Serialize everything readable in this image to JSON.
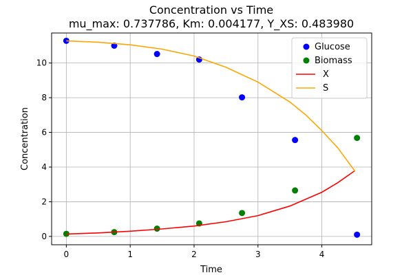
{
  "chart_data": {
    "type": "scatter",
    "title_line1": "Concentration vs Time",
    "title_line2": "mu_max: 0.737786, Km: 0.004177, Y_XS: 0.483980",
    "xlabel": "Time",
    "ylabel": "Concentration",
    "xlim": [
      -0.23,
      4.78
    ],
    "ylim": [
      -0.48,
      11.73
    ],
    "xticks": [
      0,
      1,
      2,
      3,
      4
    ],
    "yticks": [
      0,
      2,
      4,
      6,
      8,
      10
    ],
    "grid": true,
    "legend_position": "top-right",
    "scatter_series": [
      {
        "name": "Glucose",
        "color": "#0000ff",
        "x": [
          0,
          0.75,
          1.42,
          2.08,
          2.75,
          3.58,
          4.55
        ],
        "y": [
          11.28,
          11.0,
          10.52,
          10.2,
          8.02,
          5.56,
          0.1
        ]
      },
      {
        "name": "Biomass",
        "color": "#008000",
        "x": [
          0,
          0.75,
          1.42,
          2.08,
          2.75,
          3.58,
          4.55
        ],
        "y": [
          0.15,
          0.25,
          0.45,
          0.75,
          1.35,
          2.65,
          5.68
        ]
      }
    ],
    "line_series": [
      {
        "name": "X",
        "color": "#ff0000",
        "x": [
          0,
          0.5,
          1.0,
          1.5,
          2.0,
          2.5,
          3.0,
          3.5,
          4.0,
          4.25,
          4.52
        ],
        "y": [
          0.14,
          0.2,
          0.3,
          0.43,
          0.6,
          0.85,
          1.2,
          1.75,
          2.55,
          3.1,
          3.8
        ]
      },
      {
        "name": "S",
        "color": "#ffa500",
        "x": [
          0,
          0.5,
          1.0,
          1.5,
          2.0,
          2.5,
          3.0,
          3.5,
          3.75,
          4.0,
          4.25,
          4.52
        ],
        "y": [
          11.28,
          11.2,
          11.05,
          10.8,
          10.4,
          9.75,
          8.9,
          7.75,
          7.0,
          6.1,
          5.1,
          3.75
        ]
      }
    ]
  }
}
